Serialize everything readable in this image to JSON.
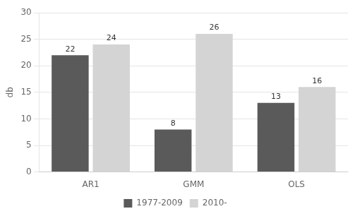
{
  "chart_data": {
    "type": "bar",
    "categories": [
      "AR1",
      "GMM",
      "OLS"
    ],
    "series": [
      {
        "name": "1977-2009",
        "color": "#5a5a5a",
        "values": [
          22,
          8,
          13
        ]
      },
      {
        "name": "2010-",
        "color": "#d4d4d4",
        "values": [
          24,
          26,
          16
        ]
      }
    ],
    "ylabel": "db",
    "ylim": [
      0,
      30
    ],
    "yticks": [
      0,
      5,
      10,
      15,
      20,
      25,
      30
    ],
    "grid": true,
    "legend": "bottom",
    "data_labels": true
  }
}
